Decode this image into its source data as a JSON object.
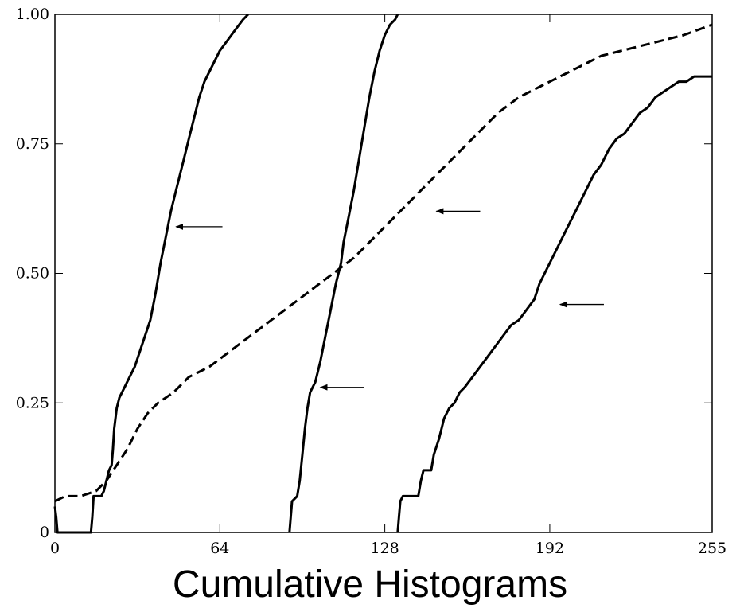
{
  "caption": "Cumulative Histograms",
  "chart_data": {
    "type": "line",
    "title": "",
    "xlabel": "",
    "ylabel": "",
    "xlim": [
      0,
      255
    ],
    "ylim": [
      0,
      1
    ],
    "grid": false,
    "x_ticks": [
      {
        "value": 0,
        "label": "0"
      },
      {
        "value": 64,
        "label": "64"
      },
      {
        "value": 128,
        "label": "128"
      },
      {
        "value": 192,
        "label": "192"
      },
      {
        "value": 255,
        "label": "255"
      }
    ],
    "y_ticks": [
      {
        "value": 0,
        "label": "0"
      },
      {
        "value": 0.25,
        "label": "0.25"
      },
      {
        "value": 0.5,
        "label": "0.50"
      },
      {
        "value": 0.75,
        "label": "0.75"
      },
      {
        "value": 1.0,
        "label": "1.00"
      }
    ],
    "series": [
      {
        "style": "solid",
        "points": [
          [
            0,
            0.05
          ],
          [
            0.5,
            0.03
          ],
          [
            1,
            0.0
          ],
          [
            14,
            0.0
          ],
          [
            14.5,
            0.03
          ],
          [
            15,
            0.07
          ],
          [
            18,
            0.07
          ],
          [
            19,
            0.08
          ],
          [
            20,
            0.1
          ],
          [
            21,
            0.12
          ],
          [
            22,
            0.13
          ],
          [
            22.5,
            0.16
          ],
          [
            23,
            0.2
          ],
          [
            24,
            0.24
          ],
          [
            25,
            0.26
          ],
          [
            27,
            0.28
          ],
          [
            29,
            0.3
          ],
          [
            31,
            0.32
          ],
          [
            33,
            0.35
          ],
          [
            35,
            0.38
          ],
          [
            37,
            0.41
          ],
          [
            39,
            0.46
          ],
          [
            41,
            0.52
          ],
          [
            43,
            0.57
          ],
          [
            45,
            0.62
          ],
          [
            47,
            0.66
          ],
          [
            48,
            0.68
          ],
          [
            50,
            0.72
          ],
          [
            52,
            0.76
          ],
          [
            54,
            0.8
          ],
          [
            56,
            0.84
          ],
          [
            58,
            0.87
          ],
          [
            61,
            0.9
          ],
          [
            64,
            0.93
          ],
          [
            67,
            0.95
          ],
          [
            70,
            0.97
          ],
          [
            73,
            0.99
          ],
          [
            75,
            1.0
          ]
        ]
      },
      {
        "style": "solid",
        "points": [
          [
            91,
            0.0
          ],
          [
            91.5,
            0.03
          ],
          [
            92,
            0.06
          ],
          [
            94,
            0.07
          ],
          [
            95,
            0.1
          ],
          [
            96,
            0.15
          ],
          [
            97,
            0.2
          ],
          [
            98,
            0.24
          ],
          [
            99,
            0.27
          ],
          [
            100,
            0.28
          ],
          [
            101,
            0.29
          ],
          [
            103,
            0.33
          ],
          [
            105,
            0.38
          ],
          [
            107,
            0.43
          ],
          [
            109,
            0.48
          ],
          [
            111,
            0.52
          ],
          [
            112,
            0.56
          ],
          [
            114,
            0.61
          ],
          [
            116,
            0.66
          ],
          [
            118,
            0.72
          ],
          [
            120,
            0.78
          ],
          [
            122,
            0.84
          ],
          [
            124,
            0.89
          ],
          [
            126,
            0.93
          ],
          [
            128,
            0.96
          ],
          [
            130,
            0.98
          ],
          [
            132,
            0.99
          ],
          [
            133,
            1.0
          ]
        ]
      },
      {
        "style": "solid",
        "points": [
          [
            133,
            0.0
          ],
          [
            133.5,
            0.03
          ],
          [
            134,
            0.06
          ],
          [
            135,
            0.07
          ],
          [
            141,
            0.07
          ],
          [
            142,
            0.1
          ],
          [
            143,
            0.12
          ],
          [
            146,
            0.12
          ],
          [
            147,
            0.15
          ],
          [
            149,
            0.18
          ],
          [
            150,
            0.2
          ],
          [
            151,
            0.22
          ],
          [
            153,
            0.24
          ],
          [
            155,
            0.25
          ],
          [
            157,
            0.27
          ],
          [
            159,
            0.28
          ],
          [
            162,
            0.3
          ],
          [
            165,
            0.32
          ],
          [
            168,
            0.34
          ],
          [
            171,
            0.36
          ],
          [
            174,
            0.38
          ],
          [
            177,
            0.4
          ],
          [
            180,
            0.41
          ],
          [
            183,
            0.43
          ],
          [
            186,
            0.45
          ],
          [
            188,
            0.48
          ],
          [
            191,
            0.51
          ],
          [
            194,
            0.54
          ],
          [
            197,
            0.57
          ],
          [
            200,
            0.6
          ],
          [
            203,
            0.63
          ],
          [
            206,
            0.66
          ],
          [
            209,
            0.69
          ],
          [
            212,
            0.71
          ],
          [
            215,
            0.74
          ],
          [
            218,
            0.76
          ],
          [
            221,
            0.77
          ],
          [
            224,
            0.79
          ],
          [
            227,
            0.81
          ],
          [
            230,
            0.82
          ],
          [
            233,
            0.84
          ],
          [
            236,
            0.85
          ],
          [
            239,
            0.86
          ],
          [
            242,
            0.87
          ],
          [
            245,
            0.87
          ],
          [
            248,
            0.88
          ],
          [
            251,
            0.88
          ],
          [
            255,
            0.88
          ]
        ]
      },
      {
        "style": "dashed",
        "points": [
          [
            0,
            0.06
          ],
          [
            4,
            0.07
          ],
          [
            10,
            0.07
          ],
          [
            16,
            0.08
          ],
          [
            20,
            0.1
          ],
          [
            24,
            0.13
          ],
          [
            28,
            0.16
          ],
          [
            32,
            0.2
          ],
          [
            36,
            0.23
          ],
          [
            40,
            0.25
          ],
          [
            46,
            0.27
          ],
          [
            52,
            0.3
          ],
          [
            60,
            0.32
          ],
          [
            68,
            0.35
          ],
          [
            76,
            0.38
          ],
          [
            84,
            0.41
          ],
          [
            92,
            0.44
          ],
          [
            100,
            0.47
          ],
          [
            108,
            0.5
          ],
          [
            116,
            0.53
          ],
          [
            124,
            0.57
          ],
          [
            132,
            0.61
          ],
          [
            140,
            0.65
          ],
          [
            148,
            0.69
          ],
          [
            156,
            0.73
          ],
          [
            164,
            0.77
          ],
          [
            172,
            0.81
          ],
          [
            180,
            0.84
          ],
          [
            188,
            0.86
          ],
          [
            196,
            0.88
          ],
          [
            204,
            0.9
          ],
          [
            212,
            0.92
          ],
          [
            220,
            0.93
          ],
          [
            228,
            0.94
          ],
          [
            236,
            0.95
          ],
          [
            244,
            0.96
          ],
          [
            255,
            0.98
          ]
        ]
      }
    ],
    "annotations": [
      {
        "type": "arrow",
        "target": [
          47,
          0.59
        ],
        "from": [
          65,
          0.59
        ]
      },
      {
        "type": "arrow",
        "target": [
          148,
          0.62
        ],
        "from": [
          165,
          0.62
        ]
      },
      {
        "type": "arrow",
        "target": [
          103,
          0.28
        ],
        "from": [
          120,
          0.28
        ]
      },
      {
        "type": "arrow",
        "target": [
          196,
          0.44
        ],
        "from": [
          213,
          0.44
        ]
      }
    ]
  }
}
